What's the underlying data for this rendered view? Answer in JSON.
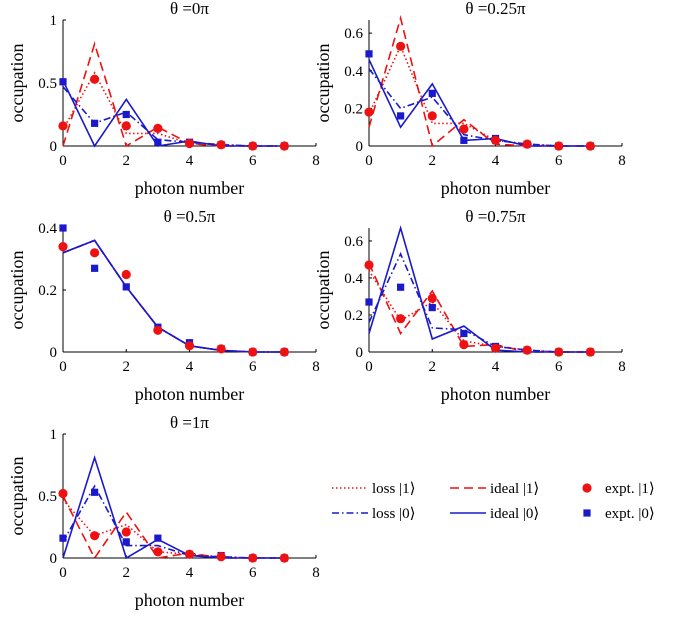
{
  "colors": {
    "red": "#ee1111",
    "blue": "#1a1acc",
    "axis": "#000000"
  },
  "legend": {
    "entries": [
      {
        "label": "loss |1⟩",
        "series": "loss1",
        "style": "dotted",
        "color": "#ee1111"
      },
      {
        "label": "ideal |1⟩",
        "series": "ideal1",
        "style": "dashed",
        "color": "#ee1111"
      },
      {
        "label": "expt. |1⟩",
        "series": "expt1",
        "style": "circle",
        "color": "#ee1111"
      },
      {
        "label": "loss |0⟩",
        "series": "loss0",
        "style": "dashdot",
        "color": "#1a1acc"
      },
      {
        "label": "ideal |0⟩",
        "series": "ideal0",
        "style": "solid",
        "color": "#1a1acc"
      },
      {
        "label": "expt. |0⟩",
        "series": "expt0",
        "style": "square",
        "color": "#1a1acc"
      }
    ]
  },
  "chart_data": [
    {
      "type": "line",
      "title": "θ =0π",
      "xlabel": "photon number",
      "ylabel": "occupation",
      "xlim": [
        0,
        8
      ],
      "ylim": [
        0,
        1
      ],
      "xticks": [
        "0",
        "2",
        "4",
        "6",
        "8"
      ],
      "yticks": [
        {
          "v": 0,
          "t": "0"
        },
        {
          "v": 0.5,
          "t": "0.5"
        },
        {
          "v": 1,
          "t": "1"
        }
      ],
      "x": [
        0,
        1,
        2,
        3,
        4,
        5,
        6,
        7
      ],
      "series": {
        "ideal1": [
          0.0,
          0.81,
          0.0,
          0.15,
          0.02,
          0.0,
          0.0,
          0.0
        ],
        "loss1": [
          0.13,
          0.58,
          0.1,
          0.1,
          0.02,
          0.01,
          0.0,
          0.0
        ],
        "ideal0": [
          0.52,
          0.0,
          0.37,
          0.0,
          0.04,
          0.0,
          0.0,
          0.0
        ],
        "loss0": [
          0.47,
          0.18,
          0.27,
          0.05,
          0.03,
          0.01,
          0.0,
          0.0
        ],
        "expt1": [
          0.16,
          0.53,
          0.16,
          0.14,
          0.02,
          0.01,
          0.0,
          0.0
        ],
        "expt0": [
          0.51,
          0.18,
          0.25,
          0.03,
          0.03,
          0.01,
          0.0,
          0.0
        ]
      }
    },
    {
      "type": "line",
      "title": "θ =0.25π",
      "xlabel": "photon number",
      "ylabel": "occupation",
      "xlim": [
        0,
        8
      ],
      "ylim": [
        0,
        0.67
      ],
      "xticks": [
        "0",
        "2",
        "4",
        "6",
        "8"
      ],
      "yticks": [
        {
          "v": 0,
          "t": "0"
        },
        {
          "v": 0.2,
          "t": "0.2"
        },
        {
          "v": 0.4,
          "t": "0.4"
        },
        {
          "v": 0.6,
          "t": "0.6"
        }
      ],
      "x": [
        0,
        1,
        2,
        3,
        4,
        5,
        6,
        7
      ],
      "series": {
        "ideal1": [
          0.1,
          0.68,
          0.0,
          0.14,
          0.01,
          0.0,
          0.0,
          0.0
        ],
        "loss1": [
          0.17,
          0.53,
          0.12,
          0.12,
          0.03,
          0.01,
          0.0,
          0.0
        ],
        "ideal0": [
          0.46,
          0.1,
          0.33,
          0.03,
          0.04,
          0.0,
          0.0,
          0.0
        ],
        "loss0": [
          0.41,
          0.2,
          0.26,
          0.06,
          0.03,
          0.01,
          0.0,
          0.0
        ],
        "expt1": [
          0.18,
          0.53,
          0.16,
          0.09,
          0.03,
          0.01,
          0.0,
          0.0
        ],
        "expt0": [
          0.49,
          0.16,
          0.28,
          0.03,
          0.04,
          0.01,
          0.0,
          0.0
        ]
      }
    },
    {
      "type": "line",
      "title": "θ =0.5π",
      "xlabel": "photon number",
      "ylabel": "occupation",
      "xlim": [
        0,
        8
      ],
      "ylim": [
        0,
        0.4
      ],
      "xticks": [
        "0",
        "2",
        "4",
        "6",
        "8"
      ],
      "yticks": [
        {
          "v": 0,
          "t": "0"
        },
        {
          "v": 0.2,
          "t": "0.2"
        },
        {
          "v": 0.4,
          "t": "0.4"
        }
      ],
      "x": [
        0,
        1,
        2,
        3,
        4,
        5,
        6,
        7
      ],
      "series": {
        "ideal1": [
          0.32,
          0.36,
          0.21,
          0.08,
          0.02,
          0.005,
          0.0,
          0.0
        ],
        "loss1": [
          0.32,
          0.36,
          0.21,
          0.08,
          0.02,
          0.005,
          0.0,
          0.0
        ],
        "ideal0": [
          0.32,
          0.36,
          0.21,
          0.08,
          0.02,
          0.005,
          0.0,
          0.0
        ],
        "loss0": [
          0.32,
          0.36,
          0.21,
          0.08,
          0.02,
          0.005,
          0.0,
          0.0
        ],
        "expt1": [
          0.34,
          0.32,
          0.25,
          0.07,
          0.02,
          0.01,
          0.0,
          0.0
        ],
        "expt0": [
          0.4,
          0.27,
          0.21,
          0.08,
          0.03,
          0.01,
          0.0,
          0.0
        ]
      }
    },
    {
      "type": "line",
      "title": "θ =0.75π",
      "xlabel": "photon number",
      "ylabel": "occupation",
      "xlim": [
        0,
        8
      ],
      "ylim": [
        0,
        0.67
      ],
      "xticks": [
        "0",
        "2",
        "4",
        "6",
        "8"
      ],
      "yticks": [
        {
          "v": 0,
          "t": "0"
        },
        {
          "v": 0.2,
          "t": "0.2"
        },
        {
          "v": 0.4,
          "t": "0.4"
        },
        {
          "v": 0.6,
          "t": "0.6"
        }
      ],
      "x": [
        0,
        1,
        2,
        3,
        4,
        5,
        6,
        7
      ],
      "series": {
        "ideal1": [
          0.48,
          0.1,
          0.33,
          0.03,
          0.04,
          0.0,
          0.0,
          0.0
        ],
        "loss1": [
          0.44,
          0.17,
          0.27,
          0.06,
          0.03,
          0.01,
          0.0,
          0.0
        ],
        "ideal0": [
          0.1,
          0.67,
          0.07,
          0.14,
          0.01,
          0.0,
          0.0,
          0.0
        ],
        "loss0": [
          0.16,
          0.53,
          0.13,
          0.12,
          0.03,
          0.01,
          0.0,
          0.0
        ],
        "expt1": [
          0.47,
          0.18,
          0.29,
          0.04,
          0.02,
          0.01,
          0.0,
          0.0
        ],
        "expt0": [
          0.27,
          0.35,
          0.24,
          0.1,
          0.03,
          0.01,
          0.0,
          0.0
        ]
      }
    },
    {
      "type": "line",
      "title": "θ =1π",
      "xlabel": "photon number",
      "ylabel": "occupation",
      "xlim": [
        0,
        8
      ],
      "ylim": [
        0,
        1
      ],
      "xticks": [
        "0",
        "2",
        "4",
        "6",
        "8"
      ],
      "yticks": [
        {
          "v": 0,
          "t": "0"
        },
        {
          "v": 0.5,
          "t": "0.5"
        },
        {
          "v": 1,
          "t": "1"
        }
      ],
      "x": [
        0,
        1,
        2,
        3,
        4,
        5,
        6,
        7
      ],
      "series": {
        "ideal1": [
          0.5,
          0.0,
          0.37,
          0.0,
          0.04,
          0.0,
          0.0,
          0.0
        ],
        "loss1": [
          0.47,
          0.18,
          0.27,
          0.05,
          0.03,
          0.01,
          0.0,
          0.0
        ],
        "ideal0": [
          0.0,
          0.81,
          0.0,
          0.15,
          0.02,
          0.0,
          0.0,
          0.0
        ],
        "loss0": [
          0.13,
          0.58,
          0.1,
          0.1,
          0.02,
          0.01,
          0.0,
          0.0
        ],
        "expt1": [
          0.52,
          0.18,
          0.21,
          0.05,
          0.03,
          0.01,
          0.0,
          0.0
        ],
        "expt0": [
          0.16,
          0.53,
          0.13,
          0.16,
          0.03,
          0.02,
          0.0,
          0.0
        ]
      }
    }
  ]
}
